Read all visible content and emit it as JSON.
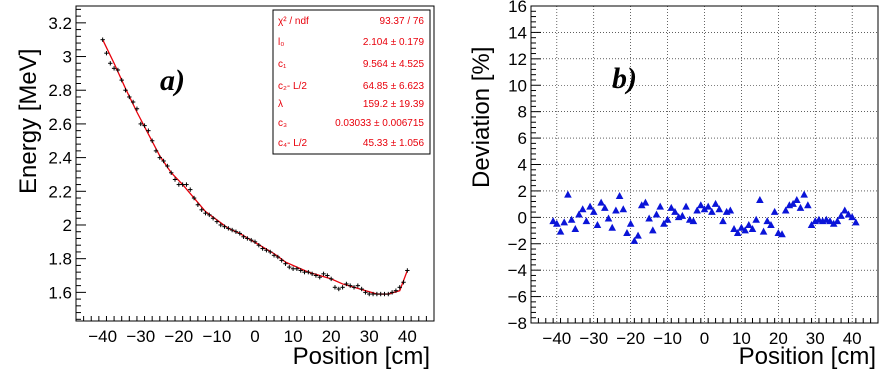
{
  "chart_data": [
    {
      "type": "scatter",
      "panel_label": "a)",
      "xlabel": "Position [cm]",
      "ylabel": "Energy [MeV]",
      "xlim": [
        -47,
        47
      ],
      "ylim": [
        1.43,
        3.3
      ],
      "xticks": [
        -40,
        -30,
        -20,
        -10,
        0,
        10,
        20,
        30,
        40
      ],
      "xtick_labels": [
        "−40",
        "−30",
        "−20",
        "−10",
        "0",
        "10",
        "20",
        "30",
        "40"
      ],
      "yticks": [
        1.6,
        1.8,
        2.0,
        2.2,
        2.4,
        2.6,
        2.8,
        3.0,
        3.2
      ],
      "ytick_labels": [
        "1.6",
        "1.8",
        "2",
        "2.2",
        "2.4",
        "2.6",
        "2.8",
        "3",
        "3.2"
      ],
      "grid": false,
      "marker_color": "#000000",
      "fit_color": "#e8000b",
      "x": [
        -40,
        -39,
        -38,
        -37,
        -36,
        -35,
        -34,
        -33,
        -32,
        -31,
        -30,
        -29,
        -28,
        -27,
        -26,
        -25,
        -24,
        -23,
        -22,
        -21,
        -20,
        -19,
        -18,
        -17,
        -16,
        -15,
        -14,
        -13,
        -12,
        -11,
        -10,
        -9,
        -8,
        -7,
        -6,
        -5,
        -4,
        -3,
        -2,
        -1,
        0,
        1,
        2,
        3,
        4,
        5,
        6,
        7,
        8,
        9,
        10,
        11,
        12,
        13,
        14,
        15,
        16,
        17,
        18,
        19,
        20,
        21,
        22,
        23,
        24,
        25,
        26,
        27,
        28,
        29,
        30,
        31,
        32,
        33,
        34,
        35,
        36,
        37,
        38,
        39,
        40
      ],
      "y": [
        3.1,
        3.02,
        2.96,
        2.93,
        2.92,
        2.86,
        2.8,
        2.76,
        2.73,
        2.69,
        2.6,
        2.59,
        2.56,
        2.5,
        2.44,
        2.4,
        2.38,
        2.35,
        2.31,
        2.27,
        2.24,
        2.24,
        2.24,
        2.21,
        2.16,
        2.12,
        2.09,
        2.07,
        2.06,
        2.04,
        2.02,
        2.0,
        1.99,
        1.98,
        1.97,
        1.96,
        1.95,
        1.93,
        1.92,
        1.91,
        1.9,
        1.88,
        1.86,
        1.85,
        1.84,
        1.82,
        1.81,
        1.79,
        1.77,
        1.75,
        1.74,
        1.74,
        1.73,
        1.72,
        1.72,
        1.71,
        1.7,
        1.69,
        1.71,
        1.7,
        1.68,
        1.63,
        1.62,
        1.63,
        1.65,
        1.64,
        1.63,
        1.64,
        1.62,
        1.6,
        1.59,
        1.59,
        1.59,
        1.59,
        1.59,
        1.59,
        1.6,
        1.61,
        1.63,
        1.66,
        1.73
      ],
      "yerr": 0.013,
      "fit_x": [
        -40,
        -37,
        -34,
        -31,
        -28,
        -25,
        -22,
        -19,
        -16,
        -13,
        -10,
        -7,
        -4,
        -1,
        2,
        5,
        8,
        11,
        14,
        17,
        20,
        23,
        26,
        29,
        32,
        35,
        38,
        40
      ],
      "fit_y": [
        3.1,
        2.96,
        2.81,
        2.67,
        2.54,
        2.41,
        2.31,
        2.24,
        2.16,
        2.08,
        2.03,
        1.98,
        1.95,
        1.91,
        1.87,
        1.83,
        1.78,
        1.75,
        1.72,
        1.7,
        1.68,
        1.65,
        1.63,
        1.61,
        1.59,
        1.59,
        1.61,
        1.73
      ],
      "stats": [
        {
          "label": "χ² / ndf",
          "value": "93.37 / 76"
        },
        {
          "label": "l₀",
          "value": "2.104 ± 0.179"
        },
        {
          "label": "c₁",
          "value": "9.564 ± 4.525"
        },
        {
          "label": "c₂- L/2",
          "value": "64.85 ± 6.623"
        },
        {
          "label": "λ",
          "value": "159.2 ± 19.39"
        },
        {
          "label": "c₃",
          "value": "0.03033 ± 0.006715"
        },
        {
          "label": "c₄- L/2",
          "value": "45.33 ± 1.056"
        }
      ]
    },
    {
      "type": "scatter",
      "panel_label": "b)",
      "xlabel": "Position [cm]",
      "ylabel": "Deviation [%]",
      "xlim": [
        -47,
        47
      ],
      "ylim": [
        -8,
        16
      ],
      "xticks": [
        -40,
        -30,
        -20,
        -10,
        0,
        10,
        20,
        30,
        40
      ],
      "xtick_labels": [
        "−40",
        "−30",
        "−20",
        "−10",
        "0",
        "10",
        "20",
        "30",
        "40"
      ],
      "yticks": [
        -8,
        -6,
        -4,
        -2,
        0,
        2,
        4,
        6,
        8,
        10,
        12,
        14,
        16
      ],
      "ytick_labels": [
        "−8",
        "−6",
        "−4",
        "−2",
        "0",
        "2",
        "4",
        "6",
        "8",
        "10",
        "12",
        "14",
        "16"
      ],
      "grid": true,
      "marker": "triangle",
      "marker_color": "#0a14d8",
      "x": [
        -41,
        -40,
        -39,
        -38,
        -37,
        -36,
        -35,
        -34,
        -33,
        -32,
        -31,
        -30,
        -29,
        -28,
        -27,
        -26,
        -25,
        -24,
        -23,
        -22,
        -21,
        -20,
        -19,
        -18,
        -17,
        -16,
        -15,
        -14,
        -13,
        -12,
        -11,
        -10,
        -9,
        -8,
        -7,
        -6,
        -5,
        -4,
        -3,
        -2,
        -1,
        0,
        1,
        2,
        3,
        4,
        5,
        6,
        7,
        8,
        9,
        10,
        11,
        12,
        13,
        14,
        15,
        16,
        17,
        18,
        19,
        20,
        21,
        22,
        23,
        24,
        25,
        26,
        27,
        28,
        29,
        30,
        31,
        32,
        33,
        34,
        35,
        36,
        37,
        38,
        39,
        40,
        41
      ],
      "y": [
        -0.3,
        -0.5,
        -1.1,
        -0.4,
        1.7,
        -0.2,
        -0.9,
        0.2,
        0.6,
        -0.3,
        0.8,
        0.4,
        -0.6,
        1.1,
        0.7,
        -0.1,
        -0.8,
        0.5,
        1.6,
        0.6,
        -1.2,
        -0.5,
        -1.8,
        -1.4,
        0.9,
        1.1,
        -0.1,
        -1.0,
        0.2,
        0.8,
        -0.5,
        -0.2,
        0.7,
        0.4,
        0.0,
        0.1,
        0.8,
        -0.2,
        -0.3,
        0.5,
        0.9,
        0.6,
        0.8,
        0.4,
        1.0,
        0.6,
        -0.3,
        0.4,
        0.5,
        -0.9,
        -1.2,
        -0.8,
        -1.0,
        -0.6,
        -0.9,
        -0.2,
        1.3,
        -1.1,
        -0.3,
        -0.6,
        0.4,
        -1.2,
        -1.3,
        0.5,
        0.9,
        1.0,
        1.3,
        0.7,
        1.7,
        0.9,
        -0.6,
        -0.3,
        -0.2,
        -0.3,
        -0.2,
        -0.3,
        -0.5,
        -0.3,
        0.1,
        0.5,
        0.2,
        0.0,
        -0.4
      ]
    }
  ]
}
